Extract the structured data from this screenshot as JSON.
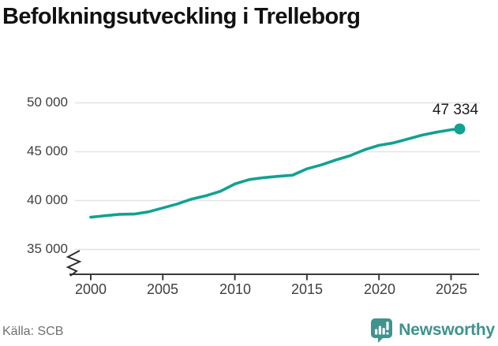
{
  "header": {
    "title": "Befolkningsutveckling i Trelleborg"
  },
  "annotation": {
    "end_label": "47 334"
  },
  "footer": {
    "source": "Källa: SCB",
    "brand": "Newsworthy"
  },
  "colors": {
    "line": "#12a191",
    "brand": "#40938f",
    "brand_text": "#3e928e",
    "grid": "#e3e3e3",
    "axis": "#3a3a3a",
    "tick_text": "#3f3f3f",
    "title_text": "#111111"
  },
  "chart_data": {
    "type": "line",
    "title": "Befolkningsutveckling i Trelleborg",
    "source": "Källa: SCB",
    "xlabel": "",
    "ylabel": "",
    "grid": true,
    "axis_break": true,
    "xlim": [
      1998.6,
      2027
    ],
    "ylim": [
      35000,
      50000
    ],
    "x": [
      2000,
      2001,
      2002,
      2003,
      2004,
      2005,
      2006,
      2007,
      2008,
      2009,
      2010,
      2011,
      2012,
      2013,
      2014,
      2015,
      2016,
      2017,
      2018,
      2019,
      2020,
      2021,
      2022,
      2023,
      2024,
      2025,
      2025.6
    ],
    "values": [
      38300,
      38450,
      38600,
      38620,
      38850,
      39250,
      39650,
      40150,
      40500,
      40950,
      41700,
      42150,
      42350,
      42480,
      42600,
      43250,
      43650,
      44150,
      44600,
      45200,
      45650,
      45900,
      46300,
      46700,
      47000,
      47250,
      47334
    ],
    "end_value": 47334,
    "end_label": "47 334",
    "yticks": [
      50000,
      45000,
      40000,
      35000
    ],
    "ytick_labels": [
      "50 000",
      "45 000",
      "40 000",
      "35 000"
    ],
    "xticks": [
      2000,
      2005,
      2010,
      2015,
      2020,
      2025
    ],
    "xtick_labels": [
      "2000",
      "2005",
      "2010",
      "2015",
      "2020",
      "2025"
    ],
    "line_color": "#12a191"
  }
}
